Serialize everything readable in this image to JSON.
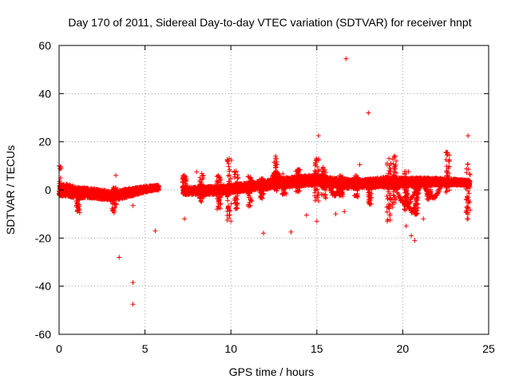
{
  "chart_data": {
    "type": "scatter",
    "title": "Day 170 of 2011, Sidereal Day-to-day VTEC variation (SDTVAR) for receiver hnpt",
    "xlabel": "GPS time / hours",
    "ylabel": "SDTVAR / TECUs",
    "xlim": [
      0,
      25
    ],
    "ylim": [
      -60,
      60
    ],
    "x_ticks": [
      "0",
      "5",
      "10",
      "15",
      "20",
      "25"
    ],
    "y_ticks": [
      "-60",
      "-40",
      "-20",
      "0",
      "20",
      "40",
      "60"
    ],
    "grid": true,
    "marker": "+",
    "series_color": "#ff0000",
    "dense_band": [
      {
        "x": 0.0,
        "lo": -2.5,
        "hi": 2.0
      },
      {
        "x": 0.5,
        "lo": -3.0,
        "hi": 2.5
      },
      {
        "x": 1.0,
        "lo": -3.2,
        "hi": 1.2
      },
      {
        "x": 2.0,
        "lo": -3.5,
        "hi": 0.5
      },
      {
        "x": 3.0,
        "lo": -4.5,
        "hi": -0.5
      },
      {
        "x": 3.5,
        "lo": -4.0,
        "hi": 0.0
      },
      {
        "x": 4.0,
        "lo": -3.0,
        "hi": 0.5
      },
      {
        "x": 5.0,
        "lo": -1.0,
        "hi": 1.5
      },
      {
        "x": 5.7,
        "lo": 0.0,
        "hi": 2.0
      },
      {
        "x": 7.2,
        "lo": -2.0,
        "hi": 1.0
      },
      {
        "x": 9.0,
        "lo": -2.0,
        "hi": 1.5
      },
      {
        "x": 11.0,
        "lo": -0.5,
        "hi": 3.0
      },
      {
        "x": 13.0,
        "lo": 1.0,
        "hi": 5.0
      },
      {
        "x": 15.0,
        "lo": 2.0,
        "hi": 6.5
      },
      {
        "x": 16.0,
        "lo": 1.0,
        "hi": 5.0
      },
      {
        "x": 17.0,
        "lo": 0.5,
        "hi": 4.5
      },
      {
        "x": 18.0,
        "lo": 1.0,
        "hi": 4.5
      },
      {
        "x": 19.0,
        "lo": 1.0,
        "hi": 5.5
      },
      {
        "x": 20.0,
        "lo": 1.0,
        "hi": 5.0
      },
      {
        "x": 21.0,
        "lo": 1.5,
        "hi": 5.0
      },
      {
        "x": 22.0,
        "lo": 2.0,
        "hi": 5.0
      },
      {
        "x": 23.0,
        "lo": 2.0,
        "hi": 4.5
      },
      {
        "x": 23.9,
        "lo": 1.5,
        "hi": 4.0
      }
    ],
    "dense_gaps": [
      [
        5.8,
        7.2
      ]
    ],
    "spikes": [
      {
        "x": 0.0,
        "lo": -2,
        "hi": 10
      },
      {
        "x": 1.1,
        "lo": -9,
        "hi": 1
      },
      {
        "x": 3.2,
        "lo": -9,
        "hi": 1
      },
      {
        "x": 7.3,
        "lo": -2,
        "hi": 6
      },
      {
        "x": 8.3,
        "lo": -5,
        "hi": 7
      },
      {
        "x": 9.3,
        "lo": -8,
        "hi": 6
      },
      {
        "x": 9.9,
        "lo": -13,
        "hi": 13
      },
      {
        "x": 10.3,
        "lo": -8,
        "hi": 8
      },
      {
        "x": 11.1,
        "lo": -7,
        "hi": 6
      },
      {
        "x": 11.8,
        "lo": -4,
        "hi": 5
      },
      {
        "x": 12.6,
        "lo": -1,
        "hi": 14
      },
      {
        "x": 13.1,
        "lo": -2,
        "hi": 7
      },
      {
        "x": 13.9,
        "lo": -1,
        "hi": 9
      },
      {
        "x": 15.0,
        "lo": -6,
        "hi": 13
      },
      {
        "x": 15.4,
        "lo": -4,
        "hi": 10
      },
      {
        "x": 16.4,
        "lo": -3,
        "hi": 6
      },
      {
        "x": 17.3,
        "lo": -3,
        "hi": 6
      },
      {
        "x": 18.1,
        "lo": -6,
        "hi": 4
      },
      {
        "x": 19.2,
        "lo": -13,
        "hi": 13
      },
      {
        "x": 19.5,
        "lo": -8,
        "hi": 14
      },
      {
        "x": 20.2,
        "lo": -9,
        "hi": 8
      },
      {
        "x": 20.8,
        "lo": -12,
        "hi": 3
      },
      {
        "x": 21.5,
        "lo": -4,
        "hi": 5
      },
      {
        "x": 22.6,
        "lo": -1,
        "hi": 16
      },
      {
        "x": 23.8,
        "lo": -12,
        "hi": 11
      }
    ],
    "arcs": [
      {
        "x0": 19.5,
        "x1": 20.9,
        "y0": 3,
        "y1": -6
      },
      {
        "x0": 20.1,
        "x1": 21.0,
        "y0": 3,
        "y1": -9
      },
      {
        "x0": 21.2,
        "x1": 22.3,
        "y0": 3,
        "y1": -3
      },
      {
        "x0": 12.3,
        "x1": 13.0,
        "y0": 2,
        "y1": 7
      },
      {
        "x0": 15.6,
        "x1": 16.5,
        "y0": 5,
        "y1": -2
      }
    ],
    "outliers": [
      {
        "x": 16.7,
        "y": 54.5
      },
      {
        "x": 18.0,
        "y": 32
      },
      {
        "x": 15.1,
        "y": 22.5
      },
      {
        "x": 23.8,
        "y": 22.5
      },
      {
        "x": 22.6,
        "y": 15.5
      },
      {
        "x": 12.6,
        "y": 14
      },
      {
        "x": 9.9,
        "y": 13
      },
      {
        "x": 19.2,
        "y": 13
      },
      {
        "x": 19.5,
        "y": 14
      },
      {
        "x": 17.5,
        "y": 10.5
      },
      {
        "x": 0.0,
        "y": 10
      },
      {
        "x": 3.3,
        "y": 6
      },
      {
        "x": 8.0,
        "y": 7.5
      },
      {
        "x": 7.3,
        "y": 6
      },
      {
        "x": 3.5,
        "y": -28
      },
      {
        "x": 4.3,
        "y": -38.5
      },
      {
        "x": 4.3,
        "y": -47.5
      },
      {
        "x": 5.6,
        "y": -17
      },
      {
        "x": 7.3,
        "y": -12
      },
      {
        "x": 11.9,
        "y": -18
      },
      {
        "x": 13.5,
        "y": -17.5
      },
      {
        "x": 15.0,
        "y": -13
      },
      {
        "x": 14.4,
        "y": -10.5
      },
      {
        "x": 16.1,
        "y": -10
      },
      {
        "x": 20.5,
        "y": -19
      },
      {
        "x": 20.7,
        "y": -21
      },
      {
        "x": 20.2,
        "y": -15
      },
      {
        "x": 21.2,
        "y": -12
      },
      {
        "x": 23.8,
        "y": -12
      },
      {
        "x": 19.1,
        "y": -13
      },
      {
        "x": 1.2,
        "y": -9.5
      },
      {
        "x": 4.3,
        "y": -6.5
      },
      {
        "x": 3.2,
        "y": -9.5
      },
      {
        "x": 9.2,
        "y": -8
      },
      {
        "x": 10.0,
        "y": -13
      },
      {
        "x": 16.6,
        "y": -9
      }
    ]
  }
}
